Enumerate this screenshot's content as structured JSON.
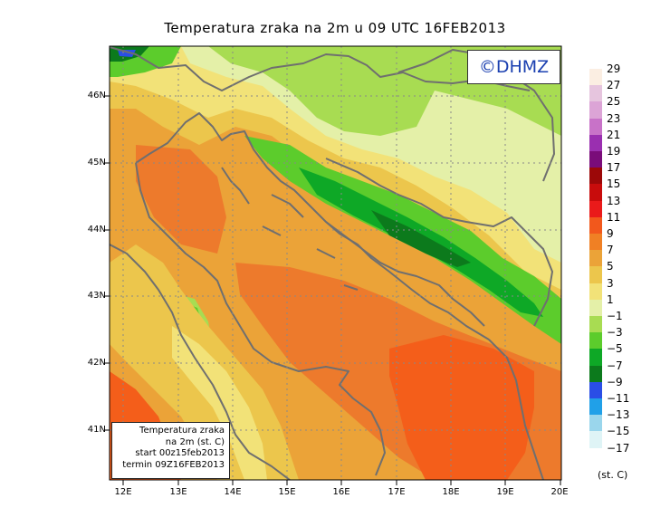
{
  "title": "Temperatura zraka na 2m u 09 UTC 16FEB2013",
  "credit": "©DHMZ",
  "info_box": {
    "line1": "Temperatura zraka",
    "line2": "na 2m (st. C)",
    "line3": "start 00z15feb2013",
    "line4": "termin 09Z16FEB2013"
  },
  "lat_labels": [
    "46N",
    "45N",
    "44N",
    "43N",
    "42N",
    "41N"
  ],
  "lon_labels": [
    "12E",
    "13E",
    "14E",
    "15E",
    "16E",
    "17E",
    "18E",
    "19E",
    "20E"
  ],
  "legend": {
    "units": "(st. C)",
    "labels": [
      "29",
      "27",
      "25",
      "23",
      "21",
      "19",
      "17",
      "15",
      "13",
      "11",
      "9",
      "7",
      "5",
      "3",
      "1",
      "−1",
      "−3",
      "−5",
      "−7",
      "−9",
      "−11",
      "−13",
      "−15",
      "−17"
    ],
    "colors": [
      "#fbeee2",
      "#e6c5de",
      "#dca4d6",
      "#c872c8",
      "#9a2fb0",
      "#7a0c7a",
      "#9c0808",
      "#c80c0c",
      "#ea1a1a",
      "#f2581c",
      "#f08024",
      "#eba338",
      "#ecc64c",
      "#f2e278",
      "#e4f0a8",
      "#a8dc52",
      "#5ccc2c",
      "#0ea826",
      "#0c7a1c",
      "#2a4ee6",
      "#20a0e8",
      "#9ad6ec",
      "#dff4f6"
    ]
  },
  "colors": {
    "hot": "#ed7a2c",
    "hotter": "#f45e1a",
    "warm": "#eba338",
    "mild": "#ecc64c",
    "cool": "#f2e278",
    "cold": "#a8dc52",
    "colder": "#5ccc2c",
    "coldest": "#0ea826",
    "deep": "#0c7a1c",
    "coast": "#6f6f6f"
  }
}
